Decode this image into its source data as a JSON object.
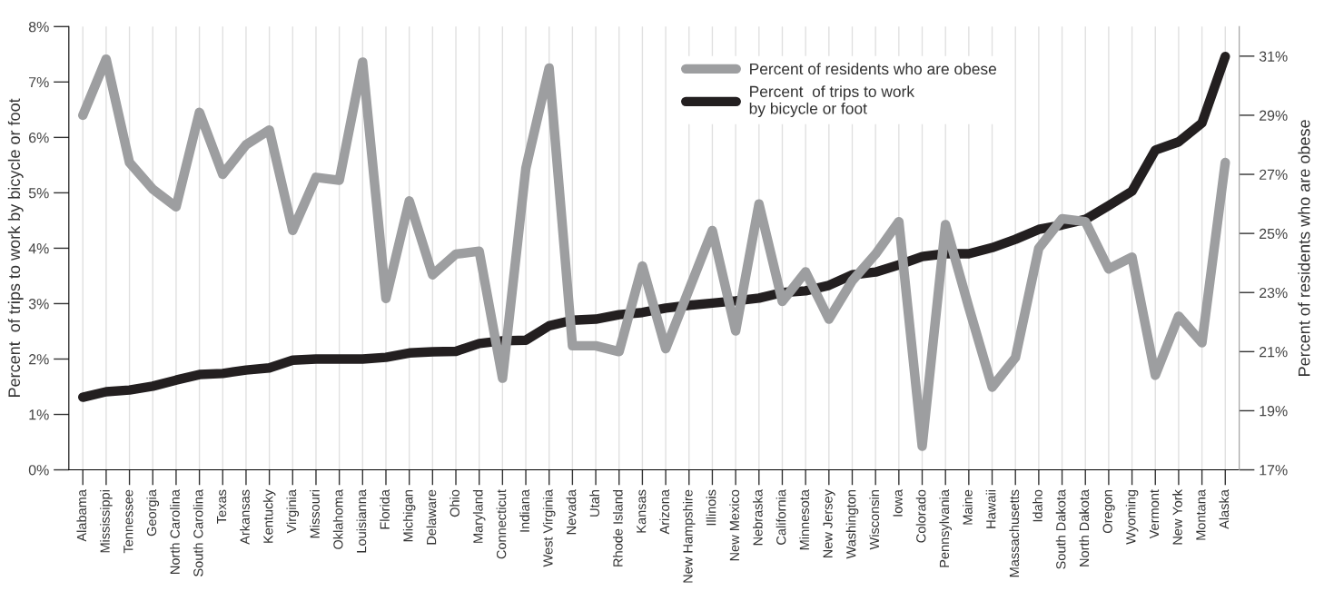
{
  "chart_data": {
    "type": "line",
    "xlabel": null,
    "ylabel": "Percent  of trips to work by bicycle or foot",
    "y2label": "Percent of residents who are obese",
    "categories": [
      "Alabama",
      "Mississippi",
      "Tennessee",
      "Georgia",
      "North Carolina",
      "South Carolina",
      "Texas",
      "Arkansas",
      "Kentucky",
      "Virginia",
      "Missouri",
      "Oklahoma",
      "Louisianna",
      "Florida",
      "Michigan",
      "Delaware",
      "Ohio",
      "Maryland",
      "Connecticut",
      "Indiana",
      "West Virginia",
      "Nevada",
      "Utah",
      "Rhode Island",
      "Kansas",
      "Arizona",
      "New Hampshire",
      "Illinois",
      "New Mexico",
      "Nebraska",
      "California",
      "Minnesota",
      "New Jersey",
      "Washington",
      "Wisconsin",
      "Iowa",
      "Colorado",
      "Pennsylvania",
      "Maine",
      "Hawaii",
      "Massachusetts",
      "Idaho",
      "South Dakota",
      "North Dakota",
      "Oregon",
      "Wyoming",
      "Vermont",
      "New York",
      "Montana",
      "Alaska"
    ],
    "series": [
      {
        "name": "Percent of residents who are obese",
        "color": "#9d9ea0",
        "axis": "y2",
        "values": [
          29.0,
          30.9,
          27.4,
          26.5,
          25.9,
          29.1,
          27.0,
          28.0,
          28.5,
          25.1,
          26.9,
          26.8,
          30.8,
          22.8,
          26.1,
          23.6,
          24.3,
          24.4,
          20.1,
          27.2,
          30.6,
          21.2,
          21.2,
          21.0,
          23.9,
          21.1,
          23.1,
          25.1,
          21.7,
          26.0,
          22.7,
          23.7,
          22.1,
          23.4,
          24.3,
          25.4,
          17.8,
          25.3,
          22.5,
          19.8,
          20.8,
          24.5,
          25.5,
          25.4,
          23.8,
          24.2,
          20.2,
          22.2,
          21.3,
          27.4
        ]
      },
      {
        "name": "Percent  of trips to work\nby bicycle or foot",
        "color": "#231f20",
        "values": [
          1.31,
          1.41,
          1.44,
          1.51,
          1.62,
          1.72,
          1.74,
          1.8,
          1.84,
          1.98,
          2.0,
          2.0,
          2.0,
          2.03,
          2.11,
          2.13,
          2.14,
          2.28,
          2.33,
          2.34,
          2.6,
          2.7,
          2.72,
          2.8,
          2.84,
          2.92,
          2.97,
          3.01,
          3.05,
          3.1,
          3.2,
          3.23,
          3.33,
          3.52,
          3.57,
          3.7,
          3.85,
          3.9,
          3.9,
          4.01,
          4.16,
          4.34,
          4.42,
          4.52,
          4.77,
          5.03,
          5.77,
          5.92,
          6.26,
          7.46
        ]
      }
    ],
    "ylim": [
      0,
      8
    ],
    "yticks": [
      {
        "value": 0,
        "label": "0%"
      },
      {
        "value": 1,
        "label": "1%"
      },
      {
        "value": 2,
        "label": "2%"
      },
      {
        "value": 3,
        "label": "3%"
      },
      {
        "value": 4,
        "label": "4%"
      },
      {
        "value": 5,
        "label": "5%"
      },
      {
        "value": 6,
        "label": "6%"
      },
      {
        "value": 7,
        "label": "7%"
      },
      {
        "value": 8,
        "label": "8%"
      }
    ],
    "y2lim": [
      17,
      32
    ],
    "y2ticks": [
      {
        "value": 17,
        "label": "17%"
      },
      {
        "value": 19,
        "label": "19%"
      },
      {
        "value": 21,
        "label": "21%"
      },
      {
        "value": 23,
        "label": "23%"
      },
      {
        "value": 25,
        "label": "25%"
      },
      {
        "value": 27,
        "label": "27%"
      },
      {
        "value": 29,
        "label": "29%"
      },
      {
        "value": 31,
        "label": "31%"
      }
    ],
    "grid": "x",
    "legend": "top",
    "marker": "none",
    "line_style": "solid"
  }
}
